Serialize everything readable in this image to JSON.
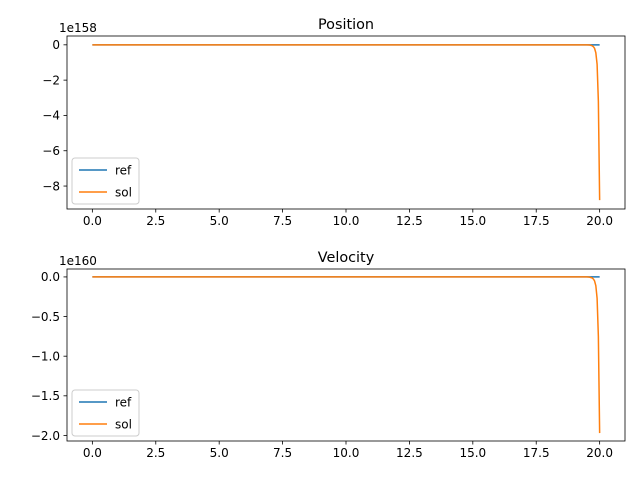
{
  "chart_data": [
    {
      "type": "line",
      "title": "Position",
      "xlabel": "",
      "ylabel": "",
      "y_offset_text": "1e158",
      "xlim": [
        -1.0,
        21.0
      ],
      "ylim": [
        -9.3,
        0.5
      ],
      "xticks": [
        0.0,
        2.5,
        5.0,
        7.5,
        10.0,
        12.5,
        15.0,
        17.5,
        20.0
      ],
      "xtick_labels": [
        "0.0",
        "2.5",
        "5.0",
        "7.5",
        "10.0",
        "12.5",
        "15.0",
        "17.5",
        "20.0"
      ],
      "yticks": [
        0,
        -2,
        -4,
        -6,
        -8
      ],
      "ytick_labels": [
        "0",
        "−2",
        "−4",
        "−6",
        "−8"
      ],
      "grid": false,
      "legend": "lower-left",
      "series": [
        {
          "name": "ref",
          "color": "#1f77b4",
          "x": [
            0,
            5,
            10,
            15,
            19.5,
            20.0
          ],
          "y": [
            0,
            0,
            0,
            0,
            0,
            0
          ]
        },
        {
          "name": "sol",
          "color": "#ff7f0e",
          "x": [
            0,
            5,
            10,
            15,
            19.5,
            19.6,
            19.7,
            19.75,
            19.8,
            19.85,
            19.9,
            19.95,
            20.0
          ],
          "y": [
            0,
            0,
            0,
            0,
            0,
            -0.01,
            -0.05,
            -0.1,
            -0.2,
            -0.45,
            -1.1,
            -3.2,
            -8.8
          ]
        }
      ]
    },
    {
      "type": "line",
      "title": "Velocity",
      "xlabel": "",
      "ylabel": "",
      "y_offset_text": "1e160",
      "xlim": [
        -1.0,
        21.0
      ],
      "ylim": [
        -2.07,
        0.1
      ],
      "xticks": [
        0.0,
        2.5,
        5.0,
        7.5,
        10.0,
        12.5,
        15.0,
        17.5,
        20.0
      ],
      "xtick_labels": [
        "0.0",
        "2.5",
        "5.0",
        "7.5",
        "10.0",
        "12.5",
        "15.0",
        "17.5",
        "20.0"
      ],
      "yticks": [
        0.0,
        -0.5,
        -1.0,
        -1.5,
        -2.0
      ],
      "ytick_labels": [
        "0.0",
        "−0.5",
        "−1.0",
        "−1.5",
        "−2.0"
      ],
      "grid": false,
      "legend": "lower-left",
      "series": [
        {
          "name": "ref",
          "color": "#1f77b4",
          "x": [
            0,
            5,
            10,
            15,
            19.5,
            20.0
          ],
          "y": [
            0,
            0,
            0,
            0,
            0,
            0
          ]
        },
        {
          "name": "sol",
          "color": "#ff7f0e",
          "x": [
            0,
            5,
            10,
            15,
            19.5,
            19.6,
            19.7,
            19.75,
            19.8,
            19.85,
            19.9,
            19.95,
            20.0
          ],
          "y": [
            0,
            0,
            0,
            0,
            0,
            -0.003,
            -0.012,
            -0.025,
            -0.05,
            -0.11,
            -0.27,
            -0.75,
            -1.97
          ]
        }
      ]
    }
  ]
}
